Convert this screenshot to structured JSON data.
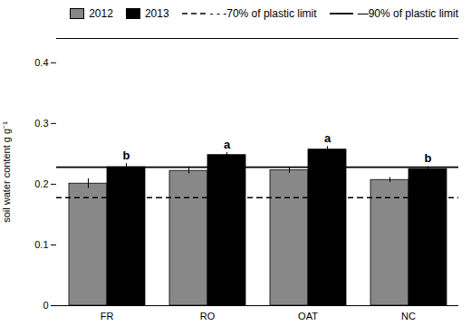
{
  "chart_data": {
    "type": "bar",
    "categories": [
      "FR",
      "RO",
      "OAT",
      "NC"
    ],
    "series": [
      {
        "name": "2012",
        "color": "#888888",
        "values": [
          0.201,
          0.222,
          0.223,
          0.207
        ],
        "errors": [
          0.008,
          0.005,
          0.005,
          0.004
        ]
      },
      {
        "name": "2013",
        "color": "#000000",
        "values": [
          0.228,
          0.248,
          0.257,
          0.225
        ],
        "errors": [
          0.006,
          0.004,
          0.005,
          0.004
        ],
        "annotations": [
          "b",
          "a",
          "a",
          "b"
        ]
      }
    ],
    "reference_lines": [
      {
        "name": "- - -70% of plastic limit",
        "value": 0.178,
        "line_style": "dashed"
      },
      {
        "name": "—90% of plastic limit",
        "value": 0.228,
        "line_style": "solid"
      }
    ],
    "ylabel": "soil water content g g⁻¹",
    "ylim": [
      0,
      0.44
    ],
    "yticks": [
      0,
      0.1,
      0.2,
      0.3,
      0.4
    ],
    "grid": false,
    "legend": "upper right"
  }
}
